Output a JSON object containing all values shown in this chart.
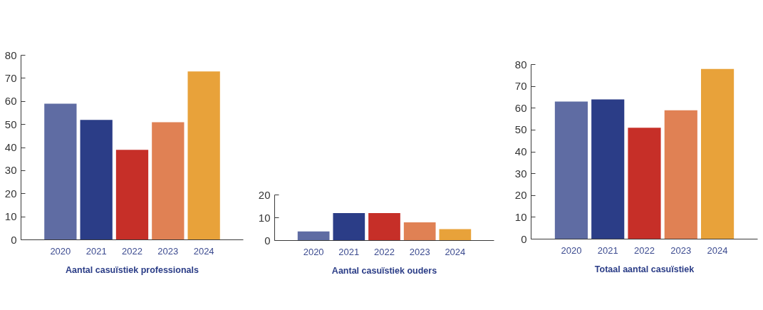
{
  "chart_data": [
    {
      "type": "bar",
      "title": "Aantal casuïstiek professionals",
      "categories": [
        "2020",
        "2021",
        "2022",
        "2023",
        "2024"
      ],
      "values": [
        59,
        52,
        39,
        51,
        73
      ],
      "colors": [
        "#5f6ca3",
        "#2b3d87",
        "#c62f28",
        "#e08154",
        "#e8a23a"
      ],
      "ylim": [
        0,
        80
      ],
      "yticks": [
        0,
        10,
        20,
        30,
        40,
        50,
        60,
        70,
        80
      ]
    },
    {
      "type": "bar",
      "title": "Aantal casuïstiek ouders",
      "categories": [
        "2020",
        "2021",
        "2022",
        "2023",
        "2024"
      ],
      "values": [
        4,
        12,
        12,
        8,
        5
      ],
      "colors": [
        "#5f6ca3",
        "#2b3d87",
        "#c62f28",
        "#e08154",
        "#e8a23a"
      ],
      "ylim": [
        0,
        20
      ],
      "yticks": [
        0,
        10,
        20
      ]
    },
    {
      "type": "bar",
      "title": "Totaal aantal casuïstiek",
      "categories": [
        "2020",
        "2021",
        "2022",
        "2023",
        "2024"
      ],
      "values": [
        63,
        64,
        51,
        59,
        78
      ],
      "colors": [
        "#5f6ca3",
        "#2b3d87",
        "#c62f28",
        "#e08154",
        "#e8a23a"
      ],
      "ylim": [
        0,
        80
      ],
      "yticks": [
        0,
        10,
        20,
        30,
        40,
        50,
        60,
        70,
        80
      ]
    }
  ]
}
